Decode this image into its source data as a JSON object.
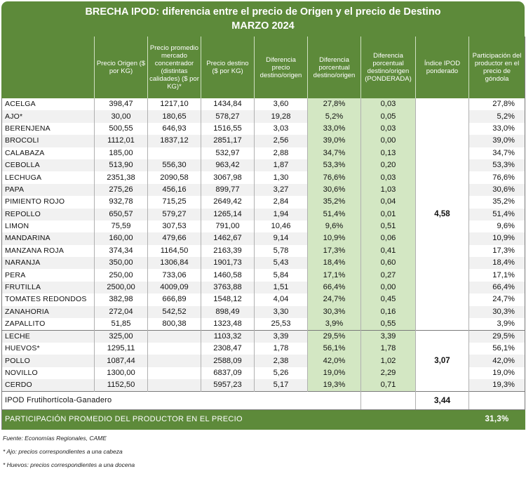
{
  "title_line1": "BRECHA IPOD: diferencia entre el precio de Origen y el precio de Destino",
  "title_line2": "MARZO 2024",
  "headers": [
    "",
    "Precio Origen ($ por KG)",
    "Precio promedio mercado concentrador (distintas calidades) ($ por KG)*",
    "Precio destino ($ por KG)",
    "Diferencia precio destino/origen",
    "Diferencia porcentual destino/origen",
    "Diferencia porcentual destino/origen (PONDERADA)",
    "Índice IPOD ponderado",
    "Participación del productor en el precio de góndola"
  ],
  "group1": [
    [
      "ACELGA",
      "398,47",
      "1217,10",
      "1434,84",
      "3,60",
      "27,8%",
      "0,03",
      "27,8%"
    ],
    [
      "AJO*",
      "30,00",
      "180,65",
      "578,27",
      "19,28",
      "5,2%",
      "0,05",
      "5,2%"
    ],
    [
      "BERENJENA",
      "500,55",
      "646,93",
      "1516,55",
      "3,03",
      "33,0%",
      "0,03",
      "33,0%"
    ],
    [
      "BROCOLI",
      "1112,01",
      "1837,12",
      "2851,17",
      "2,56",
      "39,0%",
      "0,00",
      "39,0%"
    ],
    [
      "CALABAZA",
      "185,00",
      "",
      "532,97",
      "2,88",
      "34,7%",
      "0,13",
      "34,7%"
    ],
    [
      "CEBOLLA",
      "513,90",
      "556,30",
      "963,42",
      "1,87",
      "53,3%",
      "0,20",
      "53,3%"
    ],
    [
      "LECHUGA",
      "2351,38",
      "2090,58",
      "3067,98",
      "1,30",
      "76,6%",
      "0,03",
      "76,6%"
    ],
    [
      "PAPA",
      "275,26",
      "456,16",
      "899,77",
      "3,27",
      "30,6%",
      "1,03",
      "30,6%"
    ],
    [
      "PIMIENTO ROJO",
      "932,78",
      "715,25",
      "2649,42",
      "2,84",
      "35,2%",
      "0,04",
      "35,2%"
    ],
    [
      "REPOLLO",
      "650,57",
      "579,27",
      "1265,14",
      "1,94",
      "51,4%",
      "0,01",
      "51,4%"
    ],
    [
      "LIMON",
      "75,59",
      "307,53",
      "791,00",
      "10,46",
      "9,6%",
      "0,51",
      "9,6%"
    ],
    [
      "MANDARINA",
      "160,00",
      "479,66",
      "1462,67",
      "9,14",
      "10,9%",
      "0,06",
      "10,9%"
    ],
    [
      "MANZANA ROJA",
      "374,34",
      "1164,50",
      "2163,39",
      "5,78",
      "17,3%",
      "0,41",
      "17,3%"
    ],
    [
      "NARANJA",
      "350,00",
      "1306,84",
      "1901,73",
      "5,43",
      "18,4%",
      "0,60",
      "18,4%"
    ],
    [
      "PERA",
      "250,00",
      "733,06",
      "1460,58",
      "5,84",
      "17,1%",
      "0,27",
      "17,1%"
    ],
    [
      "FRUTILLA",
      "2500,00",
      "4009,09",
      "3763,88",
      "1,51",
      "66,4%",
      "0,00",
      "66,4%"
    ],
    [
      "TOMATES REDONDOS",
      "382,98",
      "666,89",
      "1548,12",
      "4,04",
      "24,7%",
      "0,45",
      "24,7%"
    ],
    [
      "ZANAHORIA",
      "272,04",
      "542,52",
      "898,49",
      "3,30",
      "30,3%",
      "0,16",
      "30,3%"
    ],
    [
      "ZAPALLITO",
      "51,85",
      "800,38",
      "1323,48",
      "25,53",
      "3,9%",
      "0,55",
      "3,9%"
    ]
  ],
  "group1_index": "4,58",
  "group2": [
    [
      "LECHE",
      "325,00",
      "",
      "1103,32",
      "3,39",
      "29,5%",
      "3,39",
      "29,5%"
    ],
    [
      "HUEVOS*",
      "1295,11",
      "",
      "2308,47",
      "1,78",
      "56,1%",
      "1,78",
      "56,1%"
    ],
    [
      "POLLO",
      "1087,44",
      "",
      "2588,09",
      "2,38",
      "42,0%",
      "1,02",
      "42,0%"
    ],
    [
      "NOVILLO",
      "1300,00",
      "",
      "6837,09",
      "5,26",
      "19,0%",
      "2,29",
      "19,0%"
    ],
    [
      "CERDO",
      "1152,50",
      "",
      "5957,23",
      "5,17",
      "19,3%",
      "0,71",
      "19,3%"
    ]
  ],
  "group2_index": "3,07",
  "total_label": "IPOD Frutihortícola-Ganadero",
  "total_value": "3,44",
  "participation_label": "PARTICIPACIÓN PROMEDIO DEL PRODUCTOR EN EL PRECIO",
  "participation_value": "31,3%",
  "notes": [
    "Fuente: Economías Regionales, CAME",
    "* Ajo: precios correspondientes a una cabeza",
    "* Huevos: precios correspondientes a una docena"
  ]
}
